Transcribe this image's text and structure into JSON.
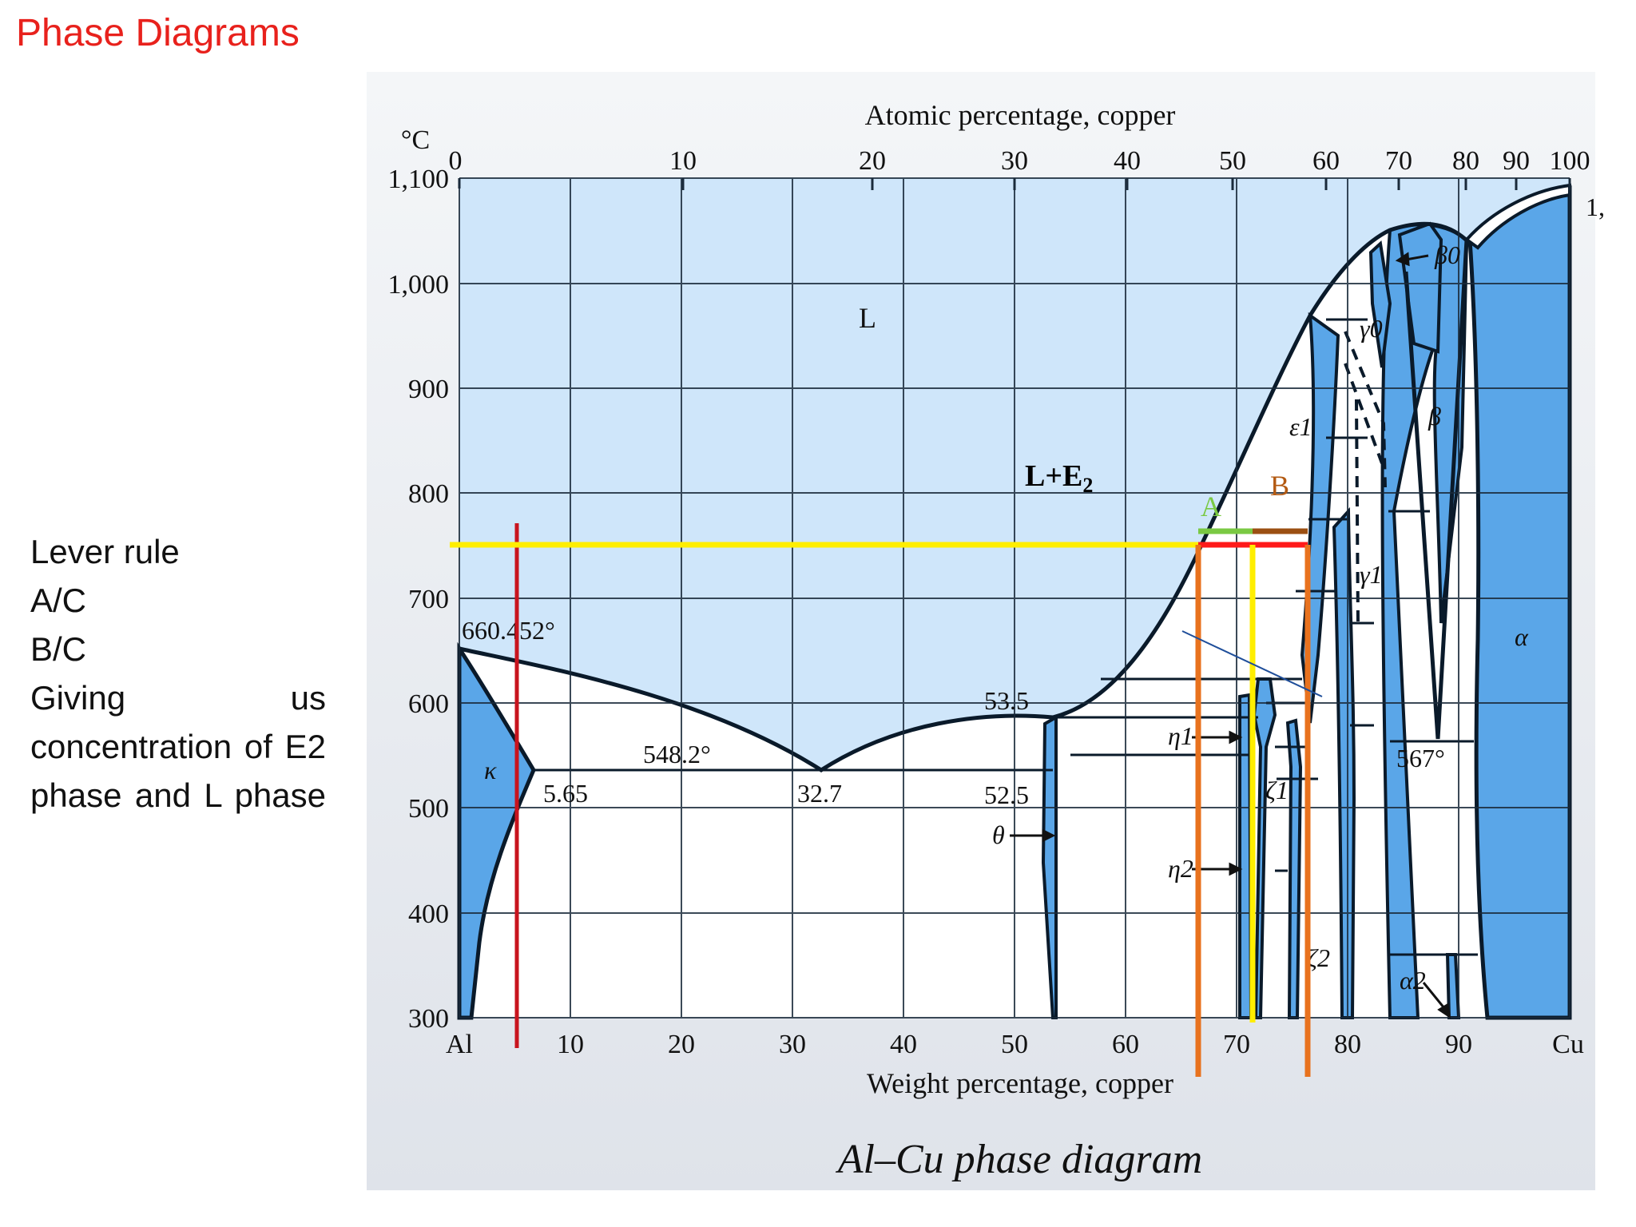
{
  "slide": {
    "title": "Phase Diagrams",
    "notes": [
      "Lever rule",
      "A/C",
      "B/C",
      "Giving us concentration of E2 phase and L phase"
    ]
  },
  "diagram": {
    "caption": "Al–Cu phase diagram",
    "top_axis_title": "Atomic percentage, copper",
    "bottom_axis_title": "Weight percentage, copper",
    "y_unit": "°C",
    "top_ticks": [
      "0",
      "10",
      "20",
      "30",
      "40",
      "50",
      "60",
      "70",
      "80",
      "90",
      "100"
    ],
    "bottom_ticks": [
      "Al",
      "10",
      "20",
      "30",
      "40",
      "50",
      "60",
      "70",
      "80",
      "90",
      "Cu"
    ],
    "y_ticks": [
      "1,100",
      "1,000",
      "900",
      "800",
      "700",
      "600",
      "500",
      "400",
      "300"
    ],
    "cut_label": "1,",
    "labels": {
      "liquid": "L",
      "melting_al": "660.452°",
      "eutectic_temp": "548.2°",
      "solvus": "5.65",
      "eutectic_comp": "32.7",
      "theta_top": "53.5",
      "theta_bottom": "52.5",
      "theta": "θ",
      "eta1": "η1",
      "eta2": "η2",
      "zeta1": "ζ1",
      "zeta2": "ζ2",
      "eps1": "ε1",
      "gamma0": "γ0",
      "gamma1": "γ1",
      "beta0": "β0",
      "beta": "β",
      "alpha": "α",
      "alpha2": "α2",
      "kappa": "κ",
      "temp_567": "567°"
    },
    "annotations": {
      "region": "L+E",
      "region_sub": "2",
      "a_label": "A",
      "b_label": "B"
    },
    "colors": {
      "liquid_fill": "#cfe6fa",
      "solid_fill": "#5aa6e8",
      "two_phase_fill": "#ffffff",
      "background": "#eef0f4",
      "tie_line": "#ffee00",
      "lever_c": "#ff1a1a",
      "lever_a": "#7ac943",
      "lever_b": "#9b4f12",
      "verticals": "#e8721e",
      "reference_line": "#c8141e",
      "title_red": "#e8211c"
    }
  }
}
